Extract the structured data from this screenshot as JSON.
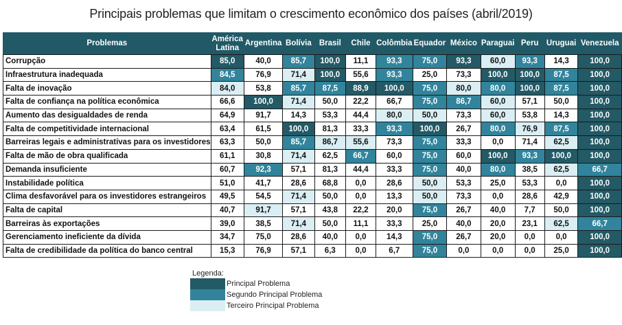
{
  "chart_data": {
    "type": "table",
    "title": "Principais problemas que limitam o crescimento econômico dos países (abril/2019)",
    "header_first": "Problemas",
    "columns": [
      "América Latina",
      "Argentina",
      "Bolívia",
      "Brasil",
      "Chile",
      "Colômbia",
      "Equador",
      "México",
      "Paraguai",
      "Peru",
      "Uruguai",
      "Venezuela"
    ],
    "rank_colors": {
      "1": "#235A66",
      "2": "#31849B",
      "3": "#DAEEF3",
      "0": "#FFFFFF"
    },
    "header_color": "#215967",
    "rows": [
      {
        "label": "Corrupção",
        "values": [
          "85,0",
          "40,0",
          "85,7",
          "100,0",
          "11,1",
          "93,3",
          "75,0",
          "93,3",
          "60,0",
          "93,3",
          "14,3",
          "100,0"
        ],
        "ranks": [
          1,
          0,
          2,
          1,
          0,
          2,
          2,
          1,
          3,
          2,
          0,
          1
        ]
      },
      {
        "label": "Infraestrutura inadequada",
        "values": [
          "84,5",
          "76,9",
          "71,4",
          "100,0",
          "55,6",
          "93,3",
          "25,0",
          "73,3",
          "100,0",
          "100,0",
          "87,5",
          "100,0"
        ],
        "ranks": [
          2,
          0,
          3,
          1,
          0,
          2,
          0,
          0,
          1,
          1,
          2,
          1
        ]
      },
      {
        "label": "Falta de inovação",
        "values": [
          "84,0",
          "53,8",
          "85,7",
          "87,5",
          "88,9",
          "100,0",
          "75,0",
          "80,0",
          "80,0",
          "100,0",
          "87,5",
          "100,0"
        ],
        "ranks": [
          3,
          0,
          2,
          2,
          1,
          1,
          2,
          3,
          2,
          1,
          2,
          1
        ]
      },
      {
        "label": "Falta de confiança na política econômica",
        "values": [
          "66,6",
          "100,0",
          "71,4",
          "50,0",
          "22,2",
          "66,7",
          "75,0",
          "86,7",
          "60,0",
          "57,1",
          "50,0",
          "100,0"
        ],
        "ranks": [
          0,
          1,
          3,
          0,
          0,
          0,
          2,
          2,
          3,
          0,
          0,
          1
        ]
      },
      {
        "label": "Aumento das desigualdades de renda",
        "values": [
          "64,9",
          "91,7",
          "14,3",
          "53,3",
          "44,4",
          "80,0",
          "50,0",
          "73,3",
          "60,0",
          "53,8",
          "14,3",
          "100,0"
        ],
        "ranks": [
          0,
          0,
          0,
          0,
          0,
          3,
          3,
          0,
          3,
          0,
          0,
          1
        ]
      },
      {
        "label": "Falta de competitividade internacional",
        "values": [
          "63,4",
          "61,5",
          "100,0",
          "81,3",
          "33,3",
          "93,3",
          "100,0",
          "26,7",
          "80,0",
          "76,9",
          "87,5",
          "100,0"
        ],
        "ranks": [
          0,
          0,
          1,
          0,
          0,
          2,
          1,
          0,
          2,
          3,
          2,
          1
        ]
      },
      {
        "label": "Barreiras legais e administrativas para os investidores",
        "values": [
          "63,3",
          "50,0",
          "85,7",
          "86,7",
          "55,6",
          "73,3",
          "75,0",
          "33,3",
          "0,0",
          "71,4",
          "62,5",
          "100,0"
        ],
        "ranks": [
          0,
          0,
          2,
          3,
          3,
          0,
          2,
          0,
          0,
          0,
          3,
          1
        ]
      },
      {
        "label": "Falta de mão de obra qualificada",
        "values": [
          "61,1",
          "30,8",
          "71,4",
          "62,5",
          "66,7",
          "60,0",
          "75,0",
          "60,0",
          "100,0",
          "93,3",
          "100,0",
          "100,0"
        ],
        "ranks": [
          0,
          0,
          3,
          0,
          2,
          0,
          2,
          0,
          1,
          2,
          1,
          1
        ]
      },
      {
        "label": "Demanda insuficiente",
        "values": [
          "60,7",
          "92,3",
          "57,1",
          "81,3",
          "44,4",
          "33,3",
          "75,0",
          "40,0",
          "80,0",
          "38,5",
          "62,5",
          "66,7"
        ],
        "ranks": [
          0,
          2,
          0,
          0,
          0,
          0,
          2,
          0,
          2,
          0,
          3,
          2
        ]
      },
      {
        "label": "Instabilidade política",
        "values": [
          "51,0",
          "41,7",
          "28,6",
          "68,8",
          "0,0",
          "28,6",
          "50,0",
          "53,3",
          "25,0",
          "53,3",
          "0,0",
          "100,0"
        ],
        "ranks": [
          0,
          0,
          0,
          0,
          0,
          0,
          3,
          0,
          0,
          0,
          0,
          1
        ]
      },
      {
        "label": "Clima desfavorável para os investidores estrangeiros",
        "values": [
          "49,5",
          "54,5",
          "71,4",
          "50,0",
          "0,0",
          "13,3",
          "50,0",
          "73,3",
          "0,0",
          "28,6",
          "42,9",
          "100,0"
        ],
        "ranks": [
          0,
          0,
          3,
          0,
          0,
          0,
          3,
          0,
          0,
          0,
          0,
          1
        ]
      },
      {
        "label": "Falta de capital",
        "values": [
          "40,7",
          "91,7",
          "57,1",
          "43,8",
          "22,2",
          "20,0",
          "75,0",
          "26,7",
          "40,0",
          "7,7",
          "50,0",
          "100,0"
        ],
        "ranks": [
          0,
          3,
          0,
          0,
          0,
          0,
          2,
          0,
          0,
          0,
          0,
          1
        ]
      },
      {
        "label": "Barreiras às exportações",
        "values": [
          "39,0",
          "38,5",
          "71,4",
          "50,0",
          "11,1",
          "33,3",
          "25,0",
          "40,0",
          "20,0",
          "23,1",
          "62,5",
          "66,7"
        ],
        "ranks": [
          0,
          0,
          3,
          0,
          0,
          0,
          0,
          0,
          0,
          0,
          3,
          2
        ]
      },
      {
        "label": "Gerenciamento ineficiente da dívida",
        "values": [
          "34,7",
          "75,0",
          "28,6",
          "40,0",
          "0,0",
          "14,3",
          "75,0",
          "26,7",
          "20,0",
          "0,0",
          "0,0",
          "100,0"
        ],
        "ranks": [
          0,
          0,
          0,
          0,
          0,
          0,
          2,
          0,
          0,
          0,
          0,
          1
        ]
      },
      {
        "label": "Falta de credibilidade da política do banco central",
        "values": [
          "15,3",
          "76,9",
          "57,1",
          "6,3",
          "0,0",
          "6,7",
          "75,0",
          "0,0",
          "0,0",
          "0,0",
          "25,0",
          "100,0"
        ],
        "ranks": [
          0,
          0,
          0,
          0,
          0,
          0,
          2,
          0,
          0,
          0,
          0,
          1
        ]
      }
    ],
    "legend": {
      "title": "Legenda:",
      "items": [
        {
          "label": "Principal Problema",
          "rank": 1
        },
        {
          "label": "Segundo Principal Problema",
          "rank": 2
        },
        {
          "label": "Terceiro Principal Problema",
          "rank": 3
        }
      ]
    }
  }
}
